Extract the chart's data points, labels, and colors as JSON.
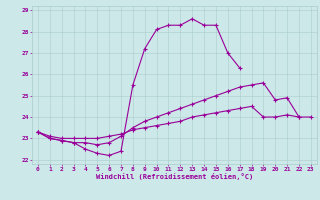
{
  "xlabel": "Windchill (Refroidissement éolien,°C)",
  "xlim": [
    -0.5,
    23.5
  ],
  "ylim": [
    21.8,
    29.2
  ],
  "yticks": [
    22,
    23,
    24,
    25,
    26,
    27,
    28,
    29
  ],
  "xticks": [
    0,
    1,
    2,
    3,
    4,
    5,
    6,
    7,
    8,
    9,
    10,
    11,
    12,
    13,
    14,
    15,
    16,
    17,
    18,
    19,
    20,
    21,
    22,
    23
  ],
  "bg_color": "#cce8e8",
  "line_color": "#990099",
  "grid_color": "#aacccc",
  "series": [
    {
      "x": [
        0,
        1,
        2,
        3,
        4,
        5,
        6,
        7,
        8,
        9,
        10,
        11,
        12,
        13,
        14,
        15,
        16,
        17
      ],
      "y": [
        23.3,
        23.0,
        22.9,
        22.8,
        22.5,
        22.3,
        22.2,
        22.4,
        25.5,
        27.2,
        28.1,
        28.3,
        28.3,
        28.6,
        28.3,
        28.3,
        27.0,
        26.3
      ]
    },
    {
      "x": [
        0,
        1,
        2,
        3,
        4,
        5,
        6,
        7,
        8,
        9,
        10,
        11,
        12,
        13,
        14,
        15,
        16,
        17,
        18,
        19,
        20,
        21,
        22
      ],
      "y": [
        23.3,
        23.0,
        22.9,
        22.8,
        22.8,
        22.7,
        22.8,
        23.1,
        23.5,
        23.8,
        24.0,
        24.2,
        24.4,
        24.6,
        24.8,
        25.0,
        25.2,
        25.4,
        25.5,
        25.6,
        24.8,
        24.9,
        24.0
      ]
    },
    {
      "x": [
        0,
        1,
        2,
        3,
        4,
        5,
        6,
        7,
        8,
        9,
        10,
        11,
        12,
        13,
        14,
        15,
        16,
        17,
        18,
        19,
        20,
        21,
        22,
        23
      ],
      "y": [
        23.3,
        23.1,
        23.0,
        23.0,
        23.0,
        23.0,
        23.1,
        23.2,
        23.4,
        23.5,
        23.6,
        23.7,
        23.8,
        24.0,
        24.1,
        24.2,
        24.3,
        24.4,
        24.5,
        24.0,
        24.0,
        24.1,
        24.0,
        24.0
      ]
    }
  ]
}
